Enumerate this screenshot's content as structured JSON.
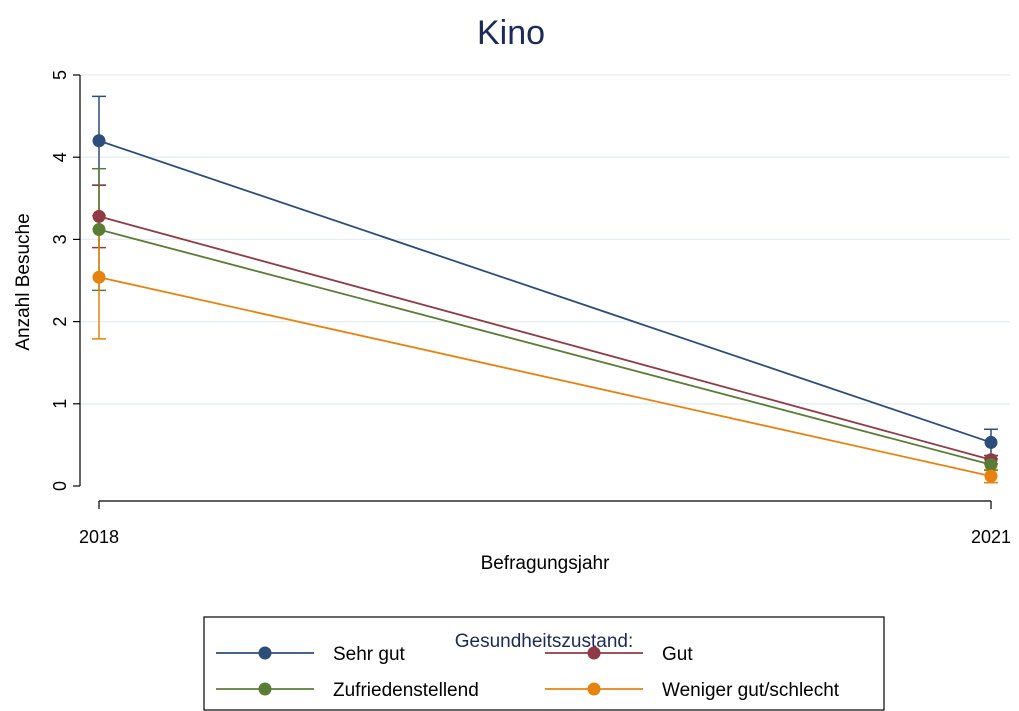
{
  "chart_data": {
    "type": "line",
    "title": "Kino",
    "xlabel": "Befragungsjahr",
    "ylabel": "Anzahl Besuche",
    "ylim": [
      0,
      5
    ],
    "yticks": [
      0,
      1,
      2,
      3,
      4,
      5
    ],
    "x": [
      "2018",
      "2021"
    ],
    "grid": true,
    "legend_title": "Gesundheitszustand:",
    "legend_placement": "bottom",
    "series": [
      {
        "name": "Sehr gut",
        "color": "#2b4e7a",
        "values": [
          4.2,
          0.53
        ],
        "ci_lower": [
          3.66,
          0.37
        ],
        "ci_upper": [
          4.74,
          0.69
        ]
      },
      {
        "name": "Gut",
        "color": "#8f3a44",
        "values": [
          3.28,
          0.32
        ],
        "ci_lower": [
          2.9,
          0.27
        ],
        "ci_upper": [
          3.66,
          0.37
        ]
      },
      {
        "name": "Zufriedenstellend",
        "color": "#5a7d35",
        "values": [
          3.12,
          0.26
        ],
        "ci_lower": [
          2.38,
          0.19
        ],
        "ci_upper": [
          3.86,
          0.33
        ]
      },
      {
        "name": "Weniger gut/schlecht",
        "color": "#e8820e",
        "values": [
          2.54,
          0.12
        ],
        "ci_lower": [
          1.79,
          0.04
        ],
        "ci_upper": [
          3.29,
          0.2
        ]
      }
    ]
  }
}
